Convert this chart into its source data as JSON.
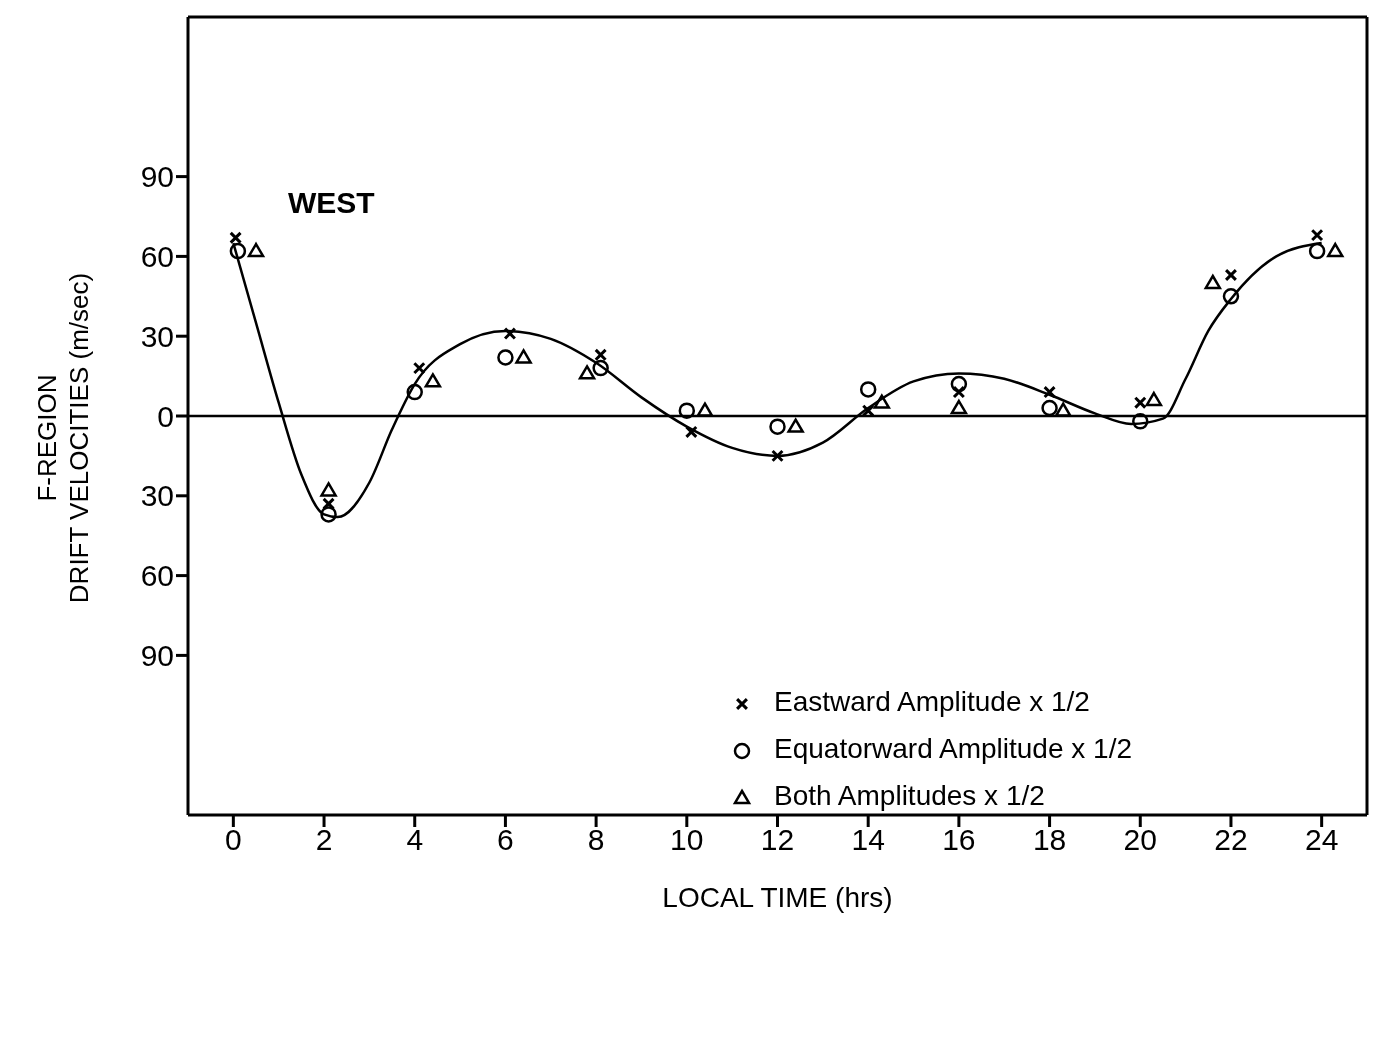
{
  "chart_data": {
    "type": "scatter",
    "xlabel": "LOCAL TIME  (hrs)",
    "ylabel": "F-REGION\nDRIFT VELOCITIES  (m/sec)",
    "annotations": [
      "WEST"
    ],
    "xlim": [
      -1,
      25
    ],
    "xticks": [
      0,
      2,
      4,
      6,
      8,
      10,
      12,
      14,
      16,
      18,
      20,
      22,
      24
    ],
    "ylim": [
      -150,
      150
    ],
    "yticks": [
      90,
      60,
      30,
      0,
      {
        "value": -30,
        "label": "30"
      },
      {
        "value": -60,
        "label": "60"
      },
      {
        "value": -90,
        "label": "90"
      }
    ],
    "legend": "bottom right",
    "ref_lines": [
      {
        "axis": "y",
        "value": 0,
        "color": "#000000"
      }
    ],
    "series": [
      {
        "name": "Eastward Amplitude  x 1/2",
        "marker": "cross",
        "color": "#000000",
        "x": [
          0.05,
          2.1,
          4.1,
          6.1,
          8.1,
          10.1,
          12.0,
          14.0,
          16.0,
          18.0,
          20.0,
          22.0,
          23.9
        ],
        "values": [
          67,
          -33,
          18,
          31,
          23,
          -6,
          -15,
          2,
          9,
          9,
          5,
          53,
          68
        ]
      },
      {
        "name": "Equatorward  Amplitude  x 1/2",
        "marker": "circle",
        "color": "#000000",
        "x": [
          0.1,
          2.1,
          4.0,
          6.0,
          8.1,
          10.0,
          12.0,
          14.0,
          16.0,
          18.0,
          20.0,
          22.0,
          23.9
        ],
        "values": [
          62,
          -37,
          9,
          22,
          18,
          2,
          -4,
          10,
          12,
          3,
          -2,
          45,
          62
        ]
      },
      {
        "name": "Both  Amplitudes  x 1/2",
        "marker": "triangle",
        "color": "#000000",
        "x": [
          0.5,
          2.1,
          4.4,
          6.4,
          7.8,
          10.4,
          12.4,
          14.3,
          16.0,
          18.3,
          20.3,
          21.6,
          24.3
        ],
        "values": [
          62,
          -28,
          13,
          22,
          16,
          2,
          -4,
          5,
          3,
          2,
          6,
          50,
          62
        ]
      },
      {
        "type": "line",
        "marker": "none",
        "line_style": "solid",
        "color": "#000000",
        "x": [
          0,
          0.5,
          1,
          1.5,
          2,
          2.3,
          3,
          3.5,
          4,
          5,
          6,
          7,
          8,
          9,
          10,
          11,
          12,
          13,
          14,
          15,
          16,
          17,
          18,
          19,
          19.8,
          20.5,
          21,
          21.5,
          22,
          23,
          24
        ],
        "values": [
          65,
          35,
          5,
          -22,
          -37,
          -38,
          -25,
          -5,
          12,
          27,
          32,
          29,
          20,
          7,
          -4,
          -12,
          -15,
          -10,
          3,
          13,
          16,
          14,
          8,
          1,
          -3,
          -1,
          14,
          32,
          44,
          60,
          65
        ]
      }
    ]
  }
}
